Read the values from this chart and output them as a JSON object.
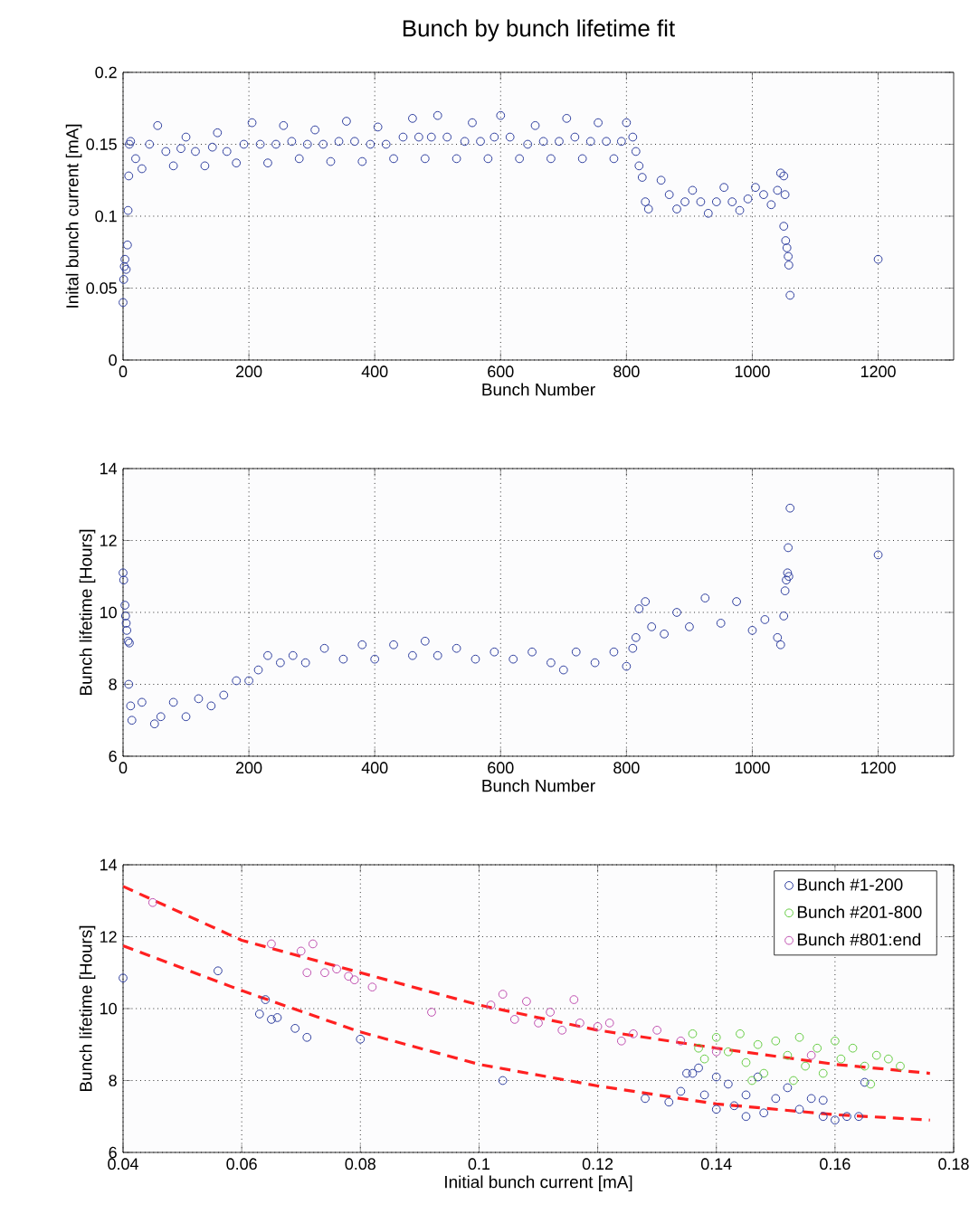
{
  "chart_data": [
    {
      "type": "scatter",
      "title": "Bunch by bunch lifetime fit",
      "xlabel": "Bunch Number",
      "ylabel": "Inital bunch current [mA]",
      "xlim": [
        0,
        1320
      ],
      "ylim": [
        0,
        0.2
      ],
      "xticks": [
        0,
        200,
        400,
        600,
        800,
        1000,
        1200
      ],
      "yticks": [
        0,
        0.05,
        0.1,
        0.15,
        0.2
      ],
      "grid": true,
      "marker": "circle",
      "color": "#2f3f9f",
      "x": [
        0,
        1,
        2,
        3,
        5,
        7,
        8,
        9,
        10,
        12,
        20,
        30,
        42,
        55,
        68,
        80,
        92,
        100,
        115,
        130,
        142,
        150,
        165,
        180,
        192,
        205,
        218,
        230,
        243,
        255,
        268,
        280,
        293,
        305,
        318,
        330,
        343,
        355,
        368,
        380,
        393,
        405,
        418,
        430,
        445,
        460,
        470,
        480,
        490,
        500,
        515,
        530,
        543,
        555,
        568,
        580,
        590,
        600,
        615,
        630,
        643,
        655,
        668,
        680,
        693,
        705,
        718,
        730,
        743,
        755,
        768,
        780,
        792,
        800,
        810,
        815,
        820,
        825,
        830,
        835,
        855,
        868,
        880,
        893,
        905,
        918,
        930,
        943,
        955,
        968,
        980,
        993,
        1005,
        1018,
        1030,
        1040,
        1045,
        1050,
        1052,
        1050,
        1053,
        1055,
        1057,
        1058,
        1060,
        1200
      ],
      "values": [
        0.04,
        0.056,
        0.065,
        0.07,
        0.063,
        0.08,
        0.104,
        0.128,
        0.15,
        0.152,
        0.14,
        0.133,
        0.15,
        0.163,
        0.145,
        0.135,
        0.147,
        0.155,
        0.145,
        0.135,
        0.148,
        0.158,
        0.145,
        0.137,
        0.15,
        0.165,
        0.15,
        0.137,
        0.15,
        0.163,
        0.152,
        0.14,
        0.15,
        0.16,
        0.15,
        0.138,
        0.152,
        0.166,
        0.152,
        0.138,
        0.15,
        0.162,
        0.15,
        0.14,
        0.155,
        0.168,
        0.155,
        0.14,
        0.155,
        0.17,
        0.155,
        0.14,
        0.152,
        0.165,
        0.152,
        0.14,
        0.155,
        0.17,
        0.155,
        0.14,
        0.15,
        0.163,
        0.152,
        0.14,
        0.152,
        0.168,
        0.155,
        0.14,
        0.152,
        0.165,
        0.152,
        0.14,
        0.152,
        0.165,
        0.155,
        0.145,
        0.135,
        0.127,
        0.11,
        0.105,
        0.125,
        0.115,
        0.105,
        0.11,
        0.118,
        0.11,
        0.102,
        0.11,
        0.12,
        0.11,
        0.104,
        0.112,
        0.12,
        0.115,
        0.108,
        0.118,
        0.13,
        0.128,
        0.115,
        0.093,
        0.083,
        0.078,
        0.072,
        0.066,
        0.045,
        0.07
      ]
    },
    {
      "type": "scatter",
      "xlabel": "Bunch Number",
      "ylabel": "Bunch lifetime [Hours]",
      "xlim": [
        0,
        1320
      ],
      "ylim": [
        6,
        14
      ],
      "xticks": [
        0,
        200,
        400,
        600,
        800,
        1000,
        1200
      ],
      "yticks": [
        6,
        8,
        10,
        12,
        14
      ],
      "grid": true,
      "marker": "circle",
      "color": "#2f3f9f",
      "x": [
        0,
        1,
        3,
        4,
        5,
        6,
        8,
        10,
        9,
        12,
        14,
        30,
        50,
        60,
        80,
        100,
        120,
        140,
        160,
        180,
        200,
        215,
        230,
        250,
        270,
        290,
        320,
        350,
        380,
        400,
        430,
        460,
        480,
        500,
        530,
        560,
        590,
        620,
        650,
        680,
        700,
        720,
        750,
        780,
        800,
        810,
        815,
        820,
        830,
        840,
        860,
        880,
        900,
        925,
        950,
        975,
        1000,
        1020,
        1040,
        1045,
        1050,
        1052,
        1054,
        1056,
        1058,
        1057,
        1060,
        1200
      ],
      "values": [
        11.1,
        10.9,
        10.2,
        9.9,
        9.7,
        9.5,
        9.2,
        9.15,
        8.0,
        7.4,
        7.0,
        7.5,
        6.9,
        7.1,
        7.5,
        7.1,
        7.6,
        7.4,
        7.7,
        8.1,
        8.1,
        8.4,
        8.8,
        8.6,
        8.8,
        8.6,
        9.0,
        8.7,
        9.1,
        8.7,
        9.1,
        8.8,
        9.2,
        8.8,
        9.0,
        8.7,
        8.9,
        8.7,
        8.9,
        8.6,
        8.4,
        8.9,
        8.6,
        8.9,
        8.5,
        9.0,
        9.3,
        10.1,
        10.3,
        9.6,
        9.4,
        10.0,
        9.6,
        10.4,
        9.7,
        10.3,
        9.5,
        9.8,
        9.3,
        9.1,
        9.9,
        10.6,
        10.9,
        11.1,
        11.0,
        11.8,
        12.9,
        11.6
      ]
    },
    {
      "type": "scatter",
      "xlabel": "Initial bunch current [mA]",
      "ylabel": "Bunch lifetime [Hours]",
      "xlim": [
        0.04,
        0.18
      ],
      "ylim": [
        6,
        14
      ],
      "xticks": [
        0.04,
        0.06,
        0.08,
        0.1,
        0.12,
        0.14,
        0.16,
        0.18
      ],
      "yticks": [
        6,
        8,
        10,
        12,
        14
      ],
      "grid": true,
      "marker": "circle",
      "legend": "top right",
      "series": [
        {
          "name": "Bunch #1-200",
          "color": "#2f3f9f",
          "x": [
            0.04,
            0.056,
            0.064,
            0.063,
            0.065,
            0.066,
            0.069,
            0.071,
            0.08,
            0.104,
            0.128,
            0.132,
            0.134,
            0.136,
            0.137,
            0.138,
            0.14,
            0.142,
            0.143,
            0.145,
            0.147,
            0.148,
            0.15,
            0.152,
            0.154,
            0.156,
            0.158,
            0.16,
            0.162,
            0.164,
            0.165,
            0.158,
            0.135,
            0.14,
            0.145
          ],
          "values": [
            10.85,
            11.05,
            10.25,
            9.85,
            9.7,
            9.75,
            9.45,
            9.2,
            9.15,
            8.0,
            7.5,
            7.4,
            7.7,
            8.2,
            8.35,
            7.6,
            8.1,
            7.9,
            7.3,
            7.6,
            8.1,
            7.1,
            7.5,
            7.8,
            7.2,
            7.5,
            7.0,
            6.9,
            7.0,
            7.0,
            7.95,
            7.45,
            8.2,
            7.2,
            7.0
          ]
        },
        {
          "name": "Bunch #201-800",
          "color": "#66cc44",
          "x": [
            0.136,
            0.137,
            0.138,
            0.14,
            0.142,
            0.144,
            0.145,
            0.147,
            0.148,
            0.15,
            0.152,
            0.154,
            0.155,
            0.157,
            0.158,
            0.16,
            0.161,
            0.163,
            0.165,
            0.166,
            0.167,
            0.169,
            0.171,
            0.146,
            0.153
          ],
          "values": [
            9.3,
            8.9,
            8.6,
            9.2,
            8.8,
            9.3,
            8.5,
            9.0,
            8.2,
            9.1,
            8.7,
            9.2,
            8.4,
            8.9,
            8.2,
            9.1,
            8.6,
            8.9,
            8.4,
            7.9,
            8.7,
            8.6,
            8.4,
            8.0,
            8.0
          ]
        },
        {
          "name": "Bunch #801:end",
          "color": "#c050b0",
          "x": [
            0.045,
            0.065,
            0.07,
            0.072,
            0.071,
            0.074,
            0.076,
            0.078,
            0.079,
            0.082,
            0.092,
            0.102,
            0.104,
            0.106,
            0.108,
            0.11,
            0.112,
            0.114,
            0.116,
            0.117,
            0.12,
            0.122,
            0.124,
            0.126,
            0.13,
            0.134,
            0.14,
            0.156
          ],
          "values": [
            12.95,
            11.8,
            11.6,
            11.8,
            11.0,
            11.0,
            11.1,
            10.9,
            10.8,
            10.6,
            9.9,
            10.1,
            10.4,
            9.7,
            10.2,
            9.6,
            9.9,
            9.4,
            10.25,
            9.6,
            9.5,
            9.6,
            9.1,
            9.3,
            9.4,
            9.1,
            8.8,
            8.7
          ]
        },
        {
          "type": "line",
          "color": "#ff2020",
          "line_style": "dashed",
          "marker": "none",
          "x": [
            0.04,
            0.06,
            0.08,
            0.1,
            0.12,
            0.14,
            0.16,
            0.176
          ],
          "values": [
            13.4,
            11.9,
            11.0,
            10.1,
            9.4,
            8.9,
            8.45,
            8.2
          ]
        },
        {
          "type": "line",
          "color": "#ff2020",
          "line_style": "dashed",
          "marker": "none",
          "x": [
            0.04,
            0.06,
            0.08,
            0.1,
            0.12,
            0.14,
            0.16,
            0.176
          ],
          "values": [
            11.75,
            10.5,
            9.35,
            8.45,
            7.85,
            7.35,
            7.05,
            6.9
          ]
        }
      ]
    }
  ]
}
